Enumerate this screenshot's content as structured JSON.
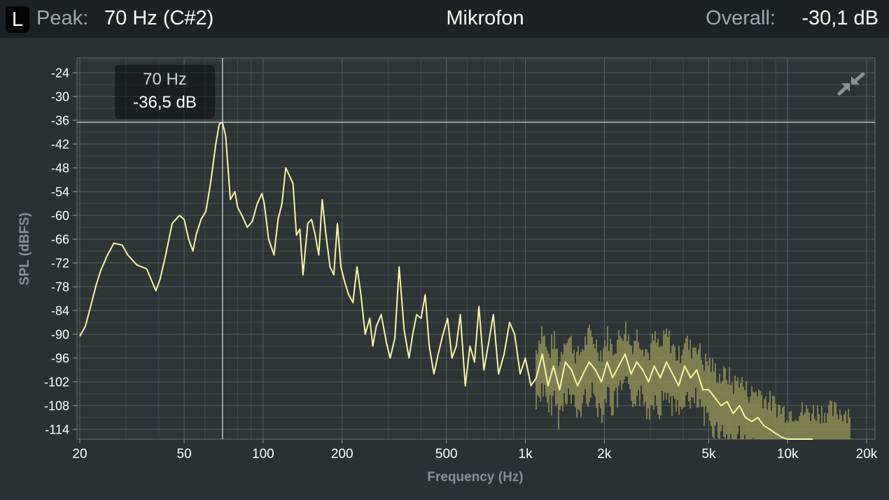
{
  "header": {
    "channel": "L",
    "peak_label": "Peak:",
    "peak_value": "70 Hz (C#2)",
    "title": "Mikrofon",
    "overall_label": "Overall:",
    "overall_value": "-30,1 dB"
  },
  "cursor": {
    "freq_label": "70 Hz",
    "db_label": "-36,5 dB",
    "freq": 70,
    "db": -36.5
  },
  "collapse_icon": "collapse-arrows-icon",
  "colors": {
    "background": "#2b3033",
    "header": "#1d2124",
    "plot_background": "#2f3436",
    "grid": "#5a5f62",
    "spectrum": "#f6f6a6",
    "spectrum_fill": "#8b8c55",
    "cursor": "#ffffff"
  },
  "chart_data": {
    "type": "line",
    "xlabel": "Frequency (Hz)",
    "ylabel": "SPL (dBFS)",
    "x_scale": "log",
    "xlim": [
      20,
      20000
    ],
    "ylim": [
      -116.5,
      -20
    ],
    "x_ticks": [
      20,
      50,
      100,
      200,
      500,
      1000,
      2000,
      5000,
      10000,
      20000
    ],
    "x_tick_labels": [
      "20",
      "50",
      "100",
      "200",
      "500",
      "1k",
      "2k",
      "5k",
      "10k",
      "20k"
    ],
    "y_ticks": [
      -24,
      -30,
      -36,
      -42,
      -48,
      -54,
      -60,
      -66,
      -72,
      -78,
      -84,
      -90,
      -96,
      -102,
      -108,
      -114
    ],
    "y_tick_labels": [
      "-24",
      "-30",
      "-36",
      "-42",
      "-48",
      "-54",
      "-60",
      "-66",
      "-72",
      "-78",
      "-84",
      "-90",
      "-96",
      "-102",
      "-108",
      "-114"
    ],
    "grid": true,
    "series": [
      {
        "values_description_free": true,
        "x": [
          20,
          21,
          22,
          23,
          24,
          25.5,
          27,
          29,
          30.5,
          33,
          36,
          39,
          40.5,
          42.5,
          45,
          48,
          50,
          52,
          54,
          55.5,
          58,
          60.5,
          63,
          66,
          68,
          70,
          72,
          75,
          78,
          80,
          83,
          87,
          91,
          95,
          99,
          101,
          105,
          110,
          114,
          118,
          122,
          126,
          130,
          134,
          138,
          142,
          148,
          153,
          158,
          163,
          168,
          173,
          180,
          186,
          192,
          198,
          205,
          212,
          220,
          228,
          236,
          245,
          255,
          262,
          270,
          282,
          295,
          305,
          318,
          330,
          345,
          360,
          372,
          385,
          400,
          415,
          430,
          448,
          465,
          485,
          505,
          525,
          545,
          565,
          590,
          615,
          640,
          665,
          695,
          725,
          755,
          790,
          830,
          870,
          910,
          955,
          1000,
          1050,
          1100,
          1160,
          1220,
          1280,
          1350,
          1420,
          1500,
          1580,
          1660,
          1750,
          1850,
          1950,
          2050,
          2150,
          2270,
          2400,
          2530,
          2660,
          2800,
          2950,
          3100,
          3270,
          3450,
          3640,
          3840,
          4050,
          4270,
          4500,
          4750,
          5000,
          5280,
          5570,
          5880,
          6200,
          6550,
          6900,
          7300,
          7700,
          8100,
          8550,
          9000,
          9500,
          10000,
          10600,
          11200,
          11800,
          12500
        ],
        "values": [
          -90.5,
          -88,
          -83,
          -78,
          -74,
          -70,
          -67,
          -67.5,
          -70,
          -72.5,
          -73.5,
          -79,
          -76,
          -70,
          -62,
          -60,
          -61,
          -66,
          -69,
          -65,
          -61,
          -59,
          -52,
          -42,
          -37,
          -36.5,
          -40,
          -56,
          -54,
          -58,
          -60,
          -63,
          -61.5,
          -57,
          -54.5,
          -57,
          -66,
          -70,
          -61,
          -57,
          -48,
          -50,
          -52,
          -65,
          -63.5,
          -75,
          -62,
          -61,
          -65,
          -70,
          -56,
          -64,
          -73,
          -75,
          -62,
          -73,
          -77,
          -80,
          -82,
          -73,
          -80,
          -90,
          -86,
          -93,
          -88,
          -85,
          -92,
          -96,
          -91,
          -73,
          -89,
          -96,
          -90,
          -85,
          -86,
          -80,
          -93,
          -100,
          -95,
          -90,
          -86,
          -96,
          -93,
          -85,
          -103,
          -93,
          -97,
          -83,
          -99,
          -92,
          -85,
          -100,
          -95,
          -87,
          -90,
          -100,
          -96,
          -103,
          -101,
          -95,
          -103,
          -98,
          -104,
          -97,
          -99,
          -103,
          -100,
          -97,
          -99,
          -102,
          -97,
          -101,
          -98,
          -95,
          -100,
          -97,
          -99,
          -102,
          -98,
          -101,
          -97,
          -100,
          -103,
          -98,
          -101,
          -99,
          -104,
          -104,
          -106,
          -108,
          -107,
          -110,
          -108,
          -111,
          -112,
          -111,
          -113,
          -114,
          -115,
          -116,
          -116.5,
          -116.5,
          -116.5,
          -116.5,
          -116.5
        ]
      }
    ]
  }
}
